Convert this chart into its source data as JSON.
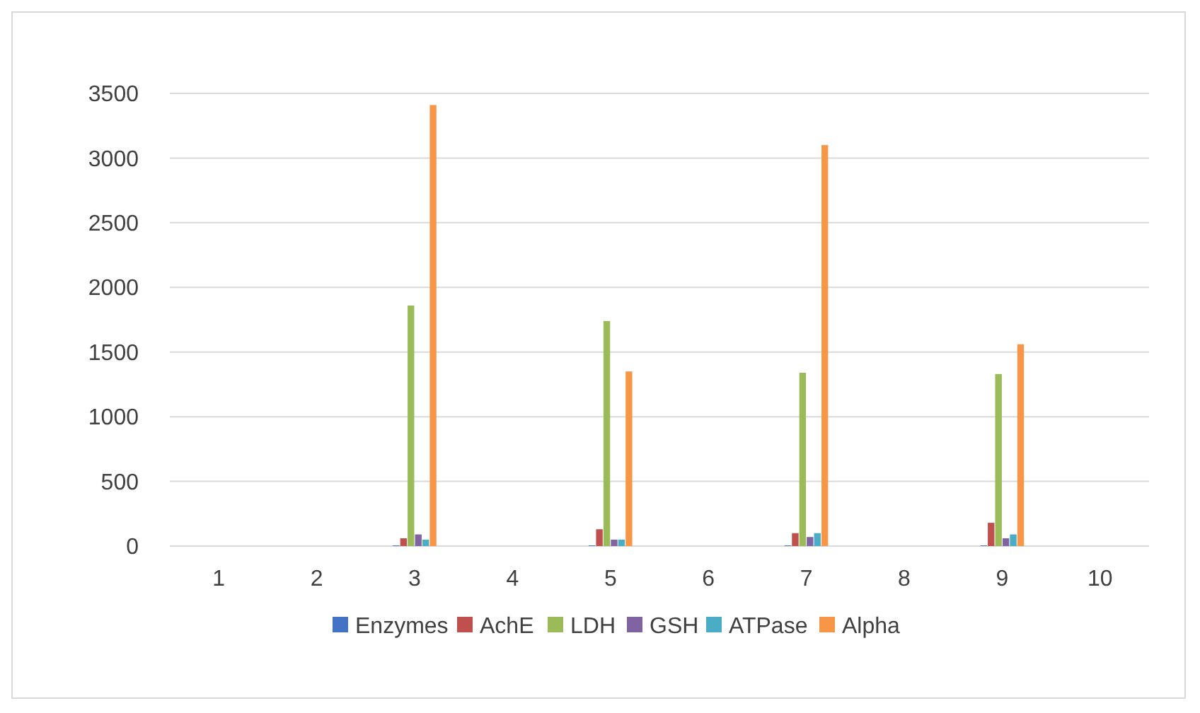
{
  "chart_data": {
    "type": "bar",
    "categories": [
      "1",
      "2",
      "3",
      "4",
      "5",
      "6",
      "7",
      "8",
      "9",
      "10"
    ],
    "series": [
      {
        "name": "Enzymes",
        "color": "#4472c4",
        "values": [
          null,
          null,
          5,
          null,
          5,
          null,
          5,
          null,
          5,
          null
        ]
      },
      {
        "name": "AchE",
        "color": "#c0504d",
        "values": [
          null,
          null,
          60,
          null,
          130,
          null,
          100,
          null,
          180,
          null
        ]
      },
      {
        "name": "LDH",
        "color": "#9bbb59",
        "values": [
          null,
          null,
          1860,
          null,
          1740,
          null,
          1340,
          null,
          1330,
          null
        ]
      },
      {
        "name": "GSH",
        "color": "#8064a2",
        "values": [
          null,
          null,
          90,
          null,
          50,
          null,
          70,
          null,
          60,
          null
        ]
      },
      {
        "name": "ATPase",
        "color": "#4bacc6",
        "values": [
          null,
          null,
          50,
          null,
          50,
          null,
          100,
          null,
          90,
          null
        ]
      },
      {
        "name": "Alpha",
        "color": "#f79646",
        "values": [
          null,
          null,
          3410,
          null,
          1350,
          null,
          3100,
          null,
          1560,
          null
        ]
      }
    ],
    "ylim": [
      0,
      3500
    ],
    "yticks": [
      0,
      500,
      1000,
      1500,
      2000,
      2500,
      3000,
      3500
    ],
    "grid": "y",
    "legend": "bottom"
  }
}
